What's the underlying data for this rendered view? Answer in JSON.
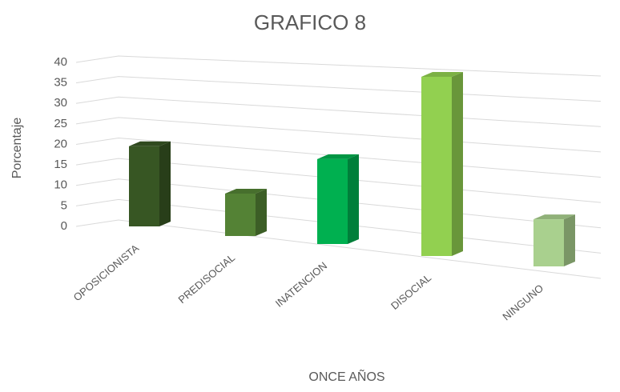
{
  "chart_data": {
    "type": "bar3d",
    "title": "GRAFICO 8",
    "x_label": "ONCE AÑOS",
    "y_label": "Porcentaje",
    "categories": [
      "OPOSICIONISTA",
      "PREDISOCIAL",
      "INATENCION",
      "DISOCIAL",
      "NINGUNO"
    ],
    "values": [
      17,
      9,
      18,
      38,
      10
    ],
    "colors": [
      "#375623",
      "#548235",
      "#00b050",
      "#92d050",
      "#a9d08e"
    ],
    "ylim": [
      0,
      40
    ],
    "yticks": [
      0,
      5,
      10,
      15,
      20,
      25,
      30,
      35,
      40
    ],
    "grid": true
  }
}
